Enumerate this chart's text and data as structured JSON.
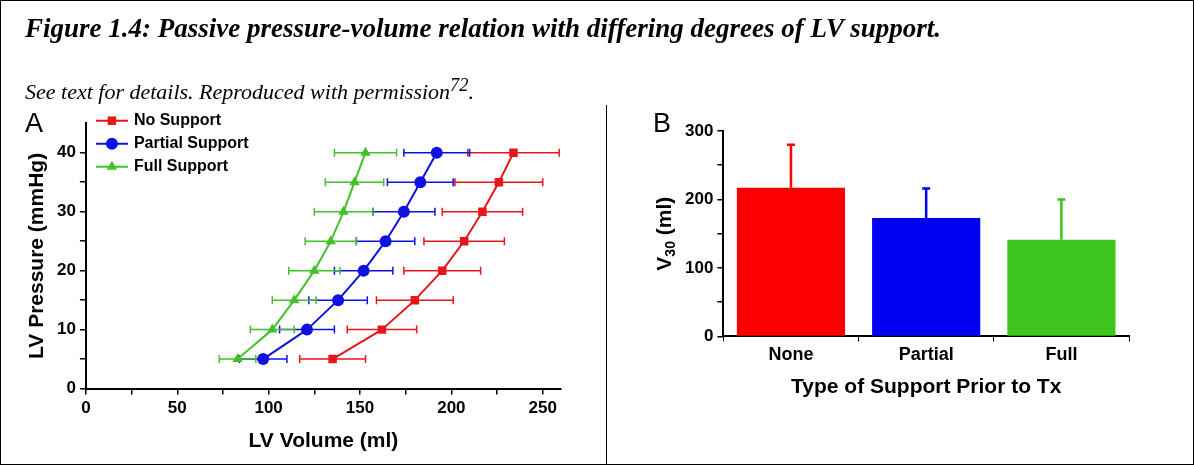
{
  "chart_data": [
    {
      "type": "line",
      "title": "Figure 1.4: Passive pressure-volume relation with differing degrees of LV support.",
      "subtitle": "See text for details. Reproduced with permission$^{72}$.",
      "annotations": [
        "A"
      ],
      "xlabel": "LV Volume (ml)",
      "ylabel": "LV Pressure (mmHg)",
      "xlim": [
        0,
        260
      ],
      "ylim": [
        0,
        45
      ],
      "xticks": [
        0,
        {
          "value": 25,
          "label": null
        },
        50,
        {
          "value": 75,
          "label": null
        },
        100,
        {
          "value": 125,
          "label": null
        },
        150,
        {
          "value": 175,
          "label": null
        },
        200,
        {
          "value": 225,
          "label": null
        },
        250
      ],
      "yticks": [
        0,
        {
          "value": 5,
          "label": null
        },
        10,
        {
          "value": 15,
          "label": null
        },
        20,
        {
          "value": 25,
          "label": null
        },
        30,
        {
          "value": 35,
          "label": null
        },
        40
      ],
      "legend": "top left",
      "series": [
        {
          "name": "No Support",
          "color": "#e8151b",
          "marker": "square",
          "x": [
            135,
            162,
            180,
            195,
            207,
            217,
            226,
            234
          ],
          "values": [
            5,
            10,
            15,
            20,
            25,
            30,
            35,
            40
          ],
          "xerrors": [
            18,
            19,
            21,
            21,
            22,
            22,
            24,
            25
          ]
        },
        {
          "name": "Partial Support",
          "color": "#1010e0",
          "marker": "circle",
          "x": [
            97,
            121,
            138,
            152,
            164,
            174,
            183,
            192
          ],
          "values": [
            5,
            10,
            15,
            20,
            25,
            30,
            35,
            40
          ],
          "xerrors": [
            13,
            15,
            16,
            16,
            16,
            17,
            18,
            18
          ]
        },
        {
          "name": "Full Support",
          "color": "#43c02a",
          "marker": "triangle",
          "x": [
            83,
            102,
            114,
            125,
            134,
            141,
            147,
            153
          ],
          "values": [
            5,
            10,
            15,
            20,
            25,
            30,
            35,
            40
          ],
          "xerrors": [
            10,
            12,
            12,
            14,
            14,
            16,
            16,
            17
          ]
        }
      ]
    },
    {
      "type": "bar",
      "annotations": [
        "B"
      ],
      "xlabel": "Type of Support Prior to Tx",
      "ylabel": "V$_{30}$ (ml)",
      "categories": [
        "None",
        "Partial",
        "Full"
      ],
      "ylim": [
        0,
        300
      ],
      "yticks": [
        0,
        {
          "value": 50,
          "label": null
        },
        100,
        {
          "value": 150,
          "label": null
        },
        200,
        {
          "value": 250,
          "label": null
        },
        300
      ],
      "values": [
        217,
        173,
        141
      ],
      "colors": [
        "#fa0000",
        "#0000f0",
        "#3ec51d"
      ],
      "errors": [
        [
          217,
          280
        ],
        [
          173,
          216
        ],
        [
          141,
          200
        ]
      ]
    }
  ]
}
